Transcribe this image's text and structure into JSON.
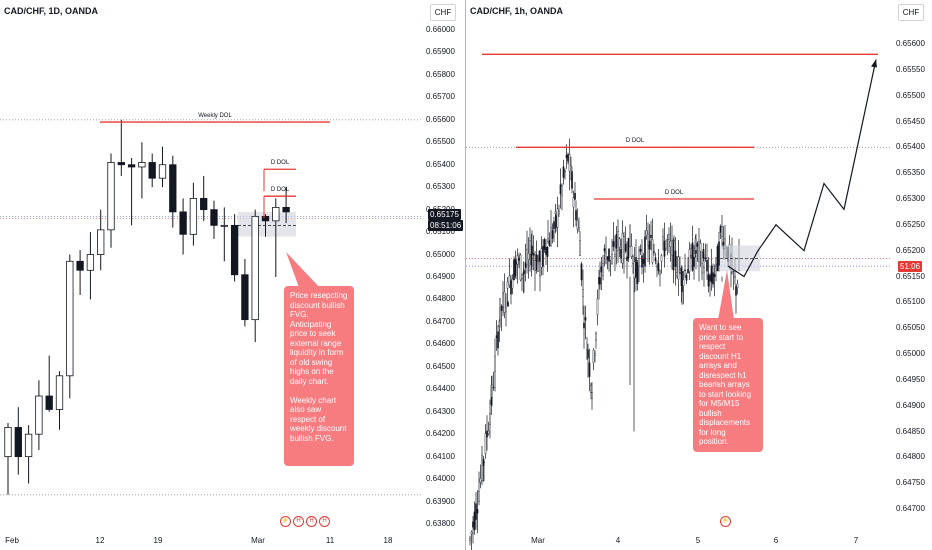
{
  "chart_data": [
    {
      "type": "candlestick",
      "title": "CAD/CHF, 1D, OANDA",
      "currency_button": "CHF",
      "y_ticks": [
        "0.66000",
        "0.65900",
        "0.65800",
        "0.65700",
        "0.65600",
        "0.65500",
        "0.65400",
        "0.65300",
        "0.65200",
        "0.65100",
        "0.65000",
        "0.64900",
        "0.64800",
        "0.64700",
        "0.64600",
        "0.64500",
        "0.64400",
        "0.64300",
        "0.64200",
        "0.64100",
        "0.64000",
        "0.63900",
        "0.63800"
      ],
      "ylim": [
        0.6375,
        0.6605
      ],
      "x_ticks": [
        "Feb",
        "12",
        "19",
        "Mar",
        "11",
        "18"
      ],
      "price_tag": "0.65175",
      "countdown_tag": "08:51:06",
      "candles": [
        {
          "o": 0.641,
          "h": 0.6425,
          "l": 0.6393,
          "c": 0.6423
        },
        {
          "o": 0.6423,
          "h": 0.6432,
          "l": 0.6402,
          "c": 0.641
        },
        {
          "o": 0.641,
          "h": 0.6424,
          "l": 0.6398,
          "c": 0.642
        },
        {
          "o": 0.642,
          "h": 0.6444,
          "l": 0.6413,
          "c": 0.6437
        },
        {
          "o": 0.6437,
          "h": 0.6455,
          "l": 0.643,
          "c": 0.6431
        },
        {
          "o": 0.6431,
          "h": 0.6448,
          "l": 0.6422,
          "c": 0.6446
        },
        {
          "o": 0.6446,
          "h": 0.65,
          "l": 0.6436,
          "c": 0.6497
        },
        {
          "o": 0.6497,
          "h": 0.6502,
          "l": 0.6482,
          "c": 0.6493
        },
        {
          "o": 0.6493,
          "h": 0.651,
          "l": 0.648,
          "c": 0.65
        },
        {
          "o": 0.65,
          "h": 0.652,
          "l": 0.6493,
          "c": 0.6511
        },
        {
          "o": 0.6511,
          "h": 0.6545,
          "l": 0.6503,
          "c": 0.6541
        },
        {
          "o": 0.6541,
          "h": 0.656,
          "l": 0.6535,
          "c": 0.654
        },
        {
          "o": 0.654,
          "h": 0.6543,
          "l": 0.6513,
          "c": 0.6539
        },
        {
          "o": 0.6539,
          "h": 0.655,
          "l": 0.6525,
          "c": 0.6541
        },
        {
          "o": 0.6541,
          "h": 0.6545,
          "l": 0.653,
          "c": 0.6534
        },
        {
          "o": 0.6534,
          "h": 0.6548,
          "l": 0.653,
          "c": 0.654
        },
        {
          "o": 0.654,
          "h": 0.6544,
          "l": 0.6512,
          "c": 0.6519
        },
        {
          "o": 0.6519,
          "h": 0.6525,
          "l": 0.65,
          "c": 0.6509
        },
        {
          "o": 0.6509,
          "h": 0.6532,
          "l": 0.6504,
          "c": 0.6525
        },
        {
          "o": 0.6525,
          "h": 0.6535,
          "l": 0.6515,
          "c": 0.652
        },
        {
          "o": 0.652,
          "h": 0.6524,
          "l": 0.6507,
          "c": 0.6513
        },
        {
          "o": 0.6513,
          "h": 0.6521,
          "l": 0.6497,
          "c": 0.6513
        },
        {
          "o": 0.6513,
          "h": 0.6518,
          "l": 0.6488,
          "c": 0.6491
        },
        {
          "o": 0.6491,
          "h": 0.6498,
          "l": 0.6468,
          "c": 0.6471
        },
        {
          "o": 0.6471,
          "h": 0.652,
          "l": 0.6461,
          "c": 0.6517
        },
        {
          "o": 0.6517,
          "h": 0.6518,
          "l": 0.6508,
          "c": 0.6515
        },
        {
          "o": 0.6515,
          "h": 0.6525,
          "l": 0.649,
          "c": 0.6521
        },
        {
          "o": 0.6521,
          "h": 0.653,
          "l": 0.6514,
          "c": 0.6519
        }
      ],
      "levels": [
        {
          "label": "Weekly DOL",
          "price": 0.6559
        },
        {
          "label": "D DOL",
          "price": 0.6538
        },
        {
          "label": "D DOL",
          "price": 0.6526
        }
      ],
      "annotation": "Price resepcting discount bullish FVG.\nAnticipating price to seek external range liquidity in form of old swing highs on the daily chart.\n\nWeekly chart also saw respect of weekly discount bullish FVG."
    },
    {
      "type": "candlestick",
      "title": "CAD/CHF, 1h, OANDA",
      "currency_button": "CHF",
      "y_ticks": [
        "0.65600",
        "0.65550",
        "0.65500",
        "0.65450",
        "0.65400",
        "0.65350",
        "0.65300",
        "0.65250",
        "0.65200",
        "0.65150",
        "0.65100",
        "0.65050",
        "0.65000",
        "0.64950",
        "0.64900",
        "0.64850",
        "0.64800",
        "0.64750",
        "0.64700"
      ],
      "ylim": [
        0.6468,
        0.6563
      ],
      "x_ticks": [
        "Mar",
        "4",
        "5",
        "6",
        "7"
      ],
      "countdown_tag": "51:06",
      "levels": [
        {
          "label": "",
          "price": 0.6558
        },
        {
          "label": "D DOL",
          "price": 0.654
        },
        {
          "label": "D DOL",
          "price": 0.653
        }
      ],
      "projection_path": [
        0.6517,
        0.6515,
        0.652,
        0.6525,
        0.652,
        0.6533,
        0.6528,
        0.6557
      ],
      "annotation": "Want to see price start to respect discount H1 arrays and disrespect h1 bearish arrays to start looking for M5/M15 bullish displacements for long position."
    }
  ]
}
